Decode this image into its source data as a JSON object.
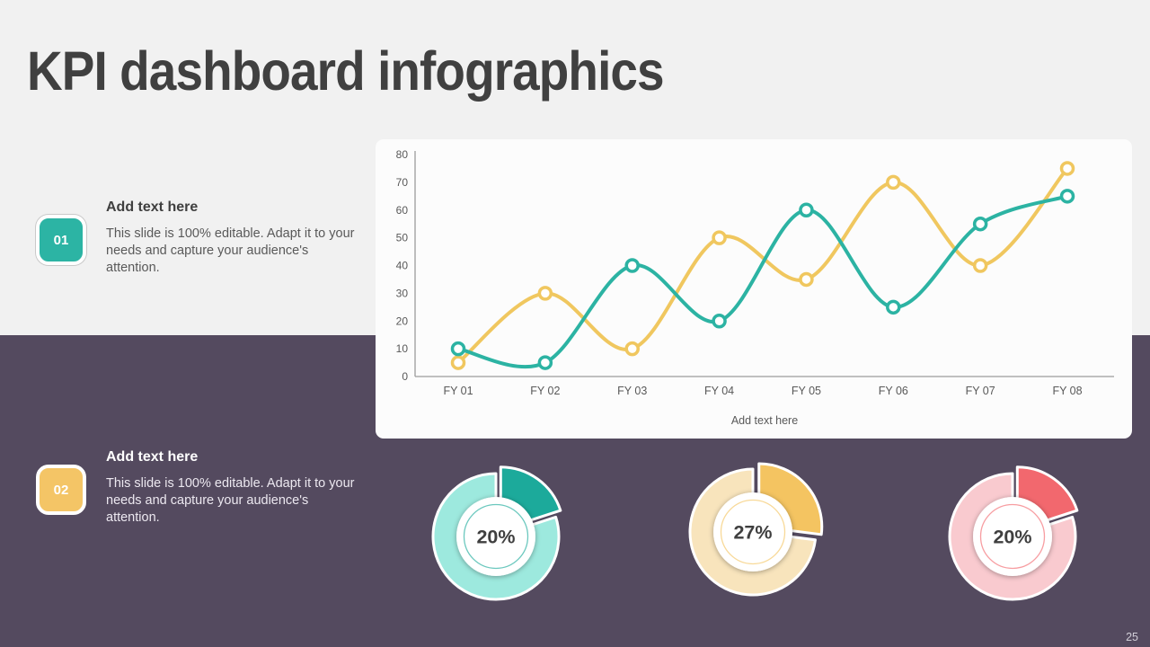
{
  "slide": {
    "title": "KPI dashboard infographics",
    "page_number": "25",
    "colors": {
      "background_top": "#f1f1f1",
      "background_bottom": "#544a5f",
      "title_text": "#404040",
      "card_background": "#fcfcfc"
    }
  },
  "items": [
    {
      "number": "01",
      "badge_color": "#2cb4a4",
      "heading": "Add text here",
      "body": "This slide is 100% editable. Adapt it to your needs and capture your audience's attention."
    },
    {
      "number": "02",
      "badge_color": "#f4c566",
      "heading": "Add text here",
      "body": "This slide is 100% editable. Adapt it to your needs and capture your audience's attention."
    }
  ],
  "chart_data": {
    "type": "line",
    "title": "",
    "xlabel": "Add text here",
    "ylabel": "",
    "categories": [
      "FY 01",
      "FY 02",
      "FY 03",
      "FY 04",
      "FY 05",
      "FY 06",
      "FY 07",
      "FY 08"
    ],
    "series": [
      {
        "name": "series-teal",
        "color": "#2cb3a3",
        "values": [
          10,
          5,
          40,
          20,
          60,
          25,
          55,
          65
        ]
      },
      {
        "name": "series-yellow",
        "color": "#f0c75f",
        "values": [
          5,
          30,
          10,
          50,
          35,
          70,
          40,
          75
        ]
      }
    ],
    "ylim": [
      0,
      80
    ],
    "ytick_step": 10,
    "grid": false,
    "legend": "none",
    "line_style": "smooth",
    "marker": "open-circle",
    "axis_color": "#9b9b9b",
    "tick_label_color": "#595959"
  },
  "donut_charts": [
    {
      "label": "20%",
      "percent": 20,
      "ring_color": "#9de9de",
      "slice_color": "#1caa9b",
      "text_color": "#3f3f3f"
    },
    {
      "label": "27%",
      "percent": 27,
      "ring_color": "#f8e4bc",
      "slice_color": "#f4c461",
      "text_color": "#3f3f3f"
    },
    {
      "label": "20%",
      "percent": 20,
      "ring_color": "#f9cacf",
      "slice_color": "#f2686e",
      "text_color": "#3f3f3f"
    }
  ]
}
